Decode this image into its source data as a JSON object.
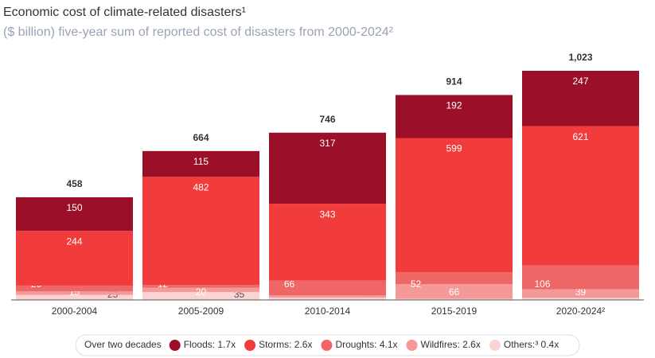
{
  "chart_data": {
    "type": "stacked-bar",
    "title": "Economic cost of climate-related disasters¹",
    "subtitle": "($ billion) five-year sum of reported cost of disasters from 2000-2024²",
    "categories": [
      "2000-2004",
      "2005-2009",
      "2010-2014",
      "2015-2019",
      "2020-2024²"
    ],
    "series": [
      {
        "name": "Others:³ 0.4x",
        "color": "#fbd3d3",
        "values": [
          23,
          35,
          10,
          5,
          9
        ]
      },
      {
        "name": "Wildfires: 2.6x",
        "color": "#f59898",
        "values": [
          15,
          20,
          10,
          66,
          39
        ]
      },
      {
        "name": "Droughts: 4.1x",
        "color": "#ee6666",
        "values": [
          26,
          12,
          66,
          52,
          106
        ]
      },
      {
        "name": "Storms: 2.6x",
        "color": "#f23b3b",
        "values": [
          244,
          482,
          343,
          599,
          621
        ]
      },
      {
        "name": "Floods: 1.7x",
        "color": "#9b1028",
        "values": [
          150,
          115,
          317,
          192,
          247
        ]
      }
    ],
    "totals": {
      "values": [
        458,
        664,
        746,
        914,
        1023
      ],
      "value_labels": [
        "458",
        "664",
        "746",
        "914",
        "1,023"
      ]
    },
    "legend_title": "Over two decades",
    "ylim": [
      0,
      1100
    ]
  }
}
